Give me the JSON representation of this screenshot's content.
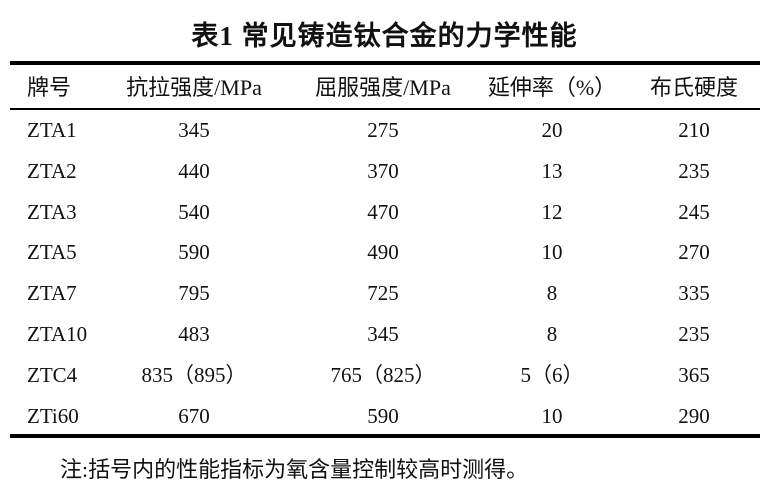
{
  "title": "表1 常见铸造钛合金的力学性能",
  "table": {
    "headers": [
      "牌号",
      "抗拉强度/MPa",
      "屈服强度/MPa",
      "延伸率（%）",
      "布氏硬度"
    ],
    "rows": [
      [
        "ZTA1",
        "345",
        "275",
        "20",
        "210"
      ],
      [
        "ZTA2",
        "440",
        "370",
        "13",
        "235"
      ],
      [
        "ZTA3",
        "540",
        "470",
        "12",
        "245"
      ],
      [
        "ZTA5",
        "590",
        "490",
        "10",
        "270"
      ],
      [
        "ZTA7",
        "795",
        "725",
        "8",
        "335"
      ],
      [
        "ZTA10",
        "483",
        "345",
        "8",
        "235"
      ],
      [
        "ZTC4",
        "835（895）",
        "765（825）",
        "5（6）",
        "365"
      ],
      [
        "ZTi60",
        "670",
        "590",
        "10",
        "290"
      ]
    ]
  },
  "note": "注:括号内的性能指标为氧含量控制较高时测得。"
}
